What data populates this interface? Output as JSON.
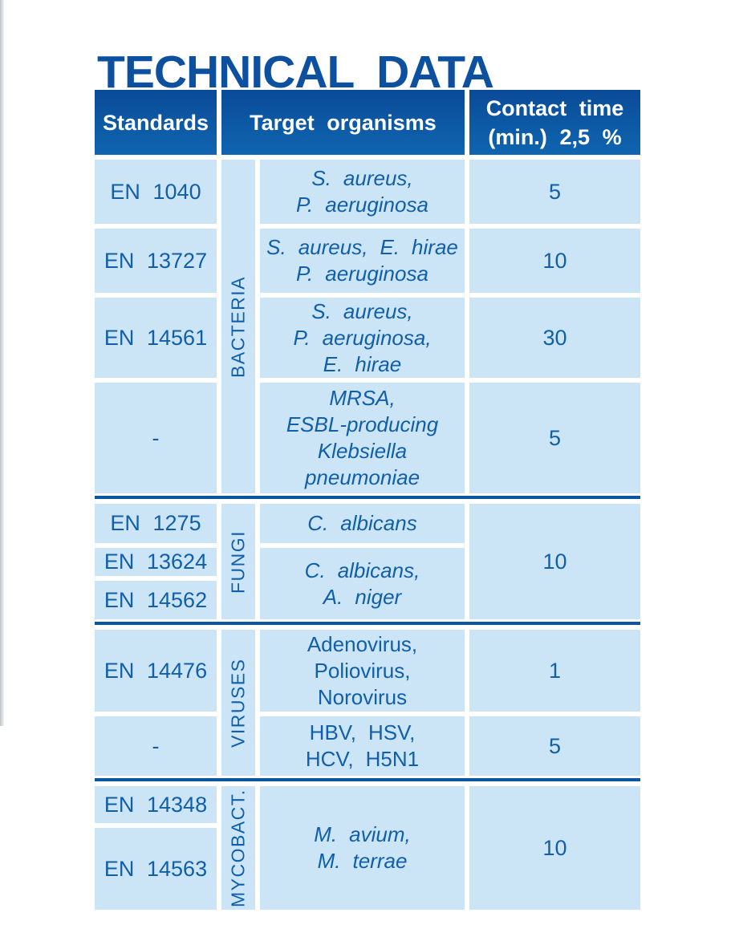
{
  "title": "TECHNICAL DATA",
  "colors": {
    "title_blue": "#0d509f",
    "header_blue_top": "#0a4b98",
    "header_blue_bottom": "#0f65b0",
    "cell_light_blue": "#cbe5f6",
    "text_blue": "#115fa9",
    "separator_blue": "#0a55a4"
  },
  "table": {
    "header": {
      "standards": "Standards",
      "target_organisms": "Target organisms",
      "contact_time": "Contact time\n(min.) 2,5 %"
    },
    "sections": [
      {
        "category": "BACTERIA",
        "standards": [
          "EN 1040",
          "EN 13727",
          "EN 14561",
          "-"
        ],
        "organisms": [
          "S. aureus,\nP. aeruginosa",
          "S. aureus, E. hirae\nP. aeruginosa",
          "S. aureus,\nP. aeruginosa,\nE. hirae",
          "MRSA,\nESBL-producing\nKlebsiella\npneumoniae"
        ],
        "contact_min": [
          "5",
          "10",
          "30",
          "5"
        ]
      },
      {
        "category": "FUNGI",
        "standards": [
          "EN 1275",
          "EN 13624",
          "EN 14562"
        ],
        "organisms": [
          "C. albicans",
          "C. albicans,\nA. niger"
        ],
        "contact_min": [
          "10"
        ]
      },
      {
        "category": "VIRUSES",
        "standards": [
          "EN 14476",
          "-"
        ],
        "organisms": [
          "Adenovirus,\nPoliovirus,\nNorovirus",
          "HBV, HSV,\nHCV, H5N1"
        ],
        "contact_min": [
          "1",
          "5"
        ]
      },
      {
        "category": "MYCOBACT.",
        "standards": [
          "EN 14348",
          "EN 14563"
        ],
        "organisms": [
          "M. avium,\nM. terrae"
        ],
        "contact_min": [
          "10"
        ]
      }
    ]
  }
}
